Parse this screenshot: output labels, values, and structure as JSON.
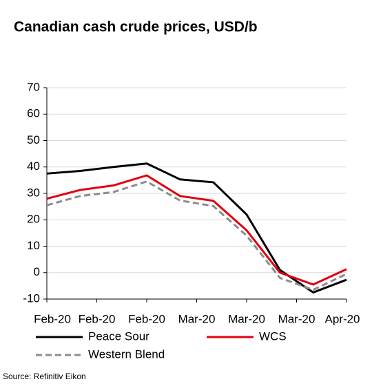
{
  "chart_data": {
    "type": "line",
    "title": "Canadian cash crude prices, USD/b",
    "x": [
      0,
      1,
      2,
      3,
      4,
      5,
      6,
      7,
      8,
      9
    ],
    "xlim": [
      0,
      9
    ],
    "xticks": [
      {
        "value": 0,
        "label": "Feb-20"
      },
      {
        "value": 1.5,
        "label": "Feb-20"
      },
      {
        "value": 3,
        "label": "Feb-20"
      },
      {
        "value": 4.5,
        "label": "Mar-20"
      },
      {
        "value": 6,
        "label": "Mar-20"
      },
      {
        "value": 7.5,
        "label": "Mar-20"
      },
      {
        "value": 9,
        "label": "Apr-20"
      }
    ],
    "ylim": [
      -10,
      70
    ],
    "yticks": [
      -10,
      0,
      10,
      20,
      30,
      40,
      50,
      60,
      70
    ],
    "grid": true,
    "series": [
      {
        "name": "Peace Sour",
        "color": "#000000",
        "line_style": "solid",
        "values": [
          37.5,
          38.5,
          40,
          41.3,
          35.3,
          34.2,
          22,
          1,
          -7.5,
          -2.7
        ]
      },
      {
        "name": "WCS",
        "color": "#e3000f",
        "line_style": "solid",
        "values": [
          28,
          31.3,
          33,
          36.8,
          29,
          27.2,
          16,
          0,
          -4.5,
          1.3
        ]
      },
      {
        "name": "Western Blend",
        "color": "#8c8c8c",
        "line_style": "dashed",
        "values": [
          25.5,
          29,
          30.5,
          34.5,
          27.3,
          25.2,
          14,
          -2,
          -6.5,
          -0.5
        ]
      }
    ],
    "source": "Source: Refinitiv Eikon"
  }
}
